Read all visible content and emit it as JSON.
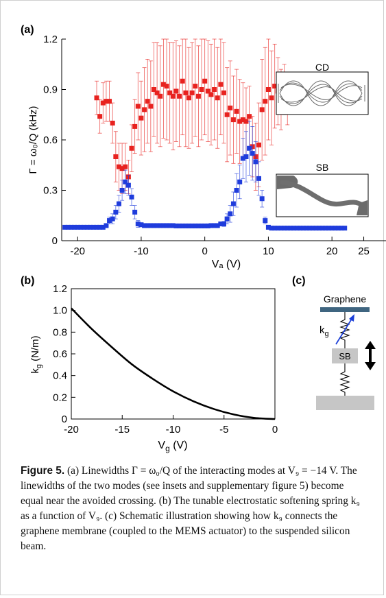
{
  "panel_a": {
    "label": "(a)",
    "xlabel": "Vₐ (V)",
    "ylabel": "Γ = ω₀/Q (kHz)",
    "insets": [
      {
        "label": "CD"
      },
      {
        "label": "SB"
      }
    ]
  },
  "panel_b": {
    "label": "(b)",
    "xlabel": "V",
    "xlabel_sub": "g",
    "xlabel_unit": " (V)",
    "ylabel": "k",
    "ylabel_sub": "g",
    "ylabel_unit": " (N/m)"
  },
  "panel_c": {
    "label": "(c)",
    "graphene_label": "Graphene",
    "spring_label": "k",
    "spring_label_sub": "g",
    "beam_label": "SB"
  },
  "caption": {
    "prefix": "Figure 5.",
    "text": " (a) Linewidths Γ = ω₀/Q of the interacting modes at V₉ = −14 V. The linewidths of the two modes (see insets and supplementary figure 5) become equal near the avoided crossing. (b) The tunable electrostatic softening spring k₉ as a function of V₉. (c) Schematic illustration showing how k₉ connects the graphene membrane (coupled to the MEMS actuator) to the suspended silicon beam."
  },
  "chart_data": [
    {
      "type": "scatter",
      "id": "a",
      "xlabel": "Vₐ (V)",
      "ylabel": "Γ = ω₀/Q (kHz)",
      "xlim": [
        -22.5,
        28.5
      ],
      "ylim": [
        0,
        1.2
      ],
      "xticks": [
        -20,
        -10,
        0,
        10,
        20,
        25
      ],
      "yticks": [
        0,
        0.3,
        0.6,
        0.9,
        1.2
      ],
      "ytick_labels": [
        "0",
        "0.3",
        "0.6",
        "0.9",
        "1.2"
      ],
      "series": [
        {
          "color": "#e8221f",
          "points": [
            [
              -17,
              0.85,
              0.1
            ],
            [
              -16.5,
              0.74,
              0.1
            ],
            [
              -16,
              0.82,
              0.12
            ],
            [
              -15.5,
              0.83,
              0.12
            ],
            [
              -15,
              0.83,
              0.12
            ],
            [
              -14.5,
              0.7,
              0.12
            ],
            [
              -14,
              0.5,
              0.15
            ],
            [
              -13.5,
              0.44,
              0.14
            ],
            [
              -13,
              0.43,
              0.15
            ],
            [
              -12.5,
              0.44,
              0.14
            ],
            [
              -12,
              0.38,
              0.1
            ],
            [
              -11.5,
              0.55,
              0.14
            ],
            [
              -11,
              0.68,
              0.16
            ],
            [
              -10.5,
              0.8,
              0.2
            ],
            [
              -10,
              0.73,
              0.22
            ],
            [
              -9.5,
              0.78,
              0.25
            ],
            [
              -9,
              0.83,
              0.25
            ],
            [
              -8.5,
              0.8,
              0.27
            ],
            [
              -8,
              0.9,
              0.28
            ],
            [
              -7.5,
              0.88,
              0.3
            ],
            [
              -7,
              0.86,
              0.3
            ],
            [
              -6.5,
              0.93,
              0.32
            ],
            [
              -6,
              0.92,
              0.32
            ],
            [
              -5.5,
              0.88,
              0.3
            ],
            [
              -5,
              0.86,
              0.32
            ],
            [
              -4.5,
              0.89,
              0.3
            ],
            [
              -4,
              0.86,
              0.3
            ],
            [
              -3.5,
              0.95,
              0.32
            ],
            [
              -3,
              0.88,
              0.32
            ],
            [
              -2.5,
              0.85,
              0.3
            ],
            [
              -2,
              0.88,
              0.3
            ],
            [
              -1.5,
              0.92,
              0.3
            ],
            [
              -1,
              0.86,
              0.3
            ],
            [
              -0.5,
              0.9,
              0.3
            ],
            [
              0,
              0.95,
              0.32
            ],
            [
              0.5,
              0.89,
              0.3
            ],
            [
              1,
              0.87,
              0.3
            ],
            [
              1.5,
              0.9,
              0.3
            ],
            [
              2,
              0.85,
              0.3
            ],
            [
              2.5,
              0.93,
              0.3
            ],
            [
              3,
              0.88,
              0.3
            ],
            [
              3.5,
              0.75,
              0.28
            ],
            [
              4,
              0.79,
              0.28
            ],
            [
              4.5,
              0.72,
              0.26
            ],
            [
              5,
              0.77,
              0.25
            ],
            [
              5.5,
              0.71,
              0.25
            ],
            [
              6,
              0.72,
              0.22
            ],
            [
              6.5,
              0.71,
              0.2
            ],
            [
              7,
              0.74,
              0.18
            ],
            [
              7.5,
              0.56,
              0.18
            ],
            [
              8,
              0.5,
              0.2
            ],
            [
              8.5,
              0.57,
              0.25
            ],
            [
              9,
              0.78,
              0.3
            ],
            [
              9.5,
              0.83,
              0.32
            ],
            [
              10,
              0.9,
              0.3
            ],
            [
              10.5,
              0.85,
              0.28
            ],
            [
              11,
              0.92,
              0.25
            ],
            [
              11.5,
              0.89,
              0.2
            ],
            [
              12,
              0.84,
              0.18
            ],
            [
              12.5,
              0.9,
              0.15
            ],
            [
              13,
              0.84,
              0.15
            ]
          ]
        },
        {
          "color": "#1f3cdc",
          "points": [
            [
              -22,
              0.08,
              0.005
            ],
            [
              -21.5,
              0.08,
              0.005
            ],
            [
              -21,
              0.08,
              0.005
            ],
            [
              -20.5,
              0.08,
              0.005
            ],
            [
              -20,
              0.08,
              0.005
            ],
            [
              -19.5,
              0.08,
              0.005
            ],
            [
              -19,
              0.08,
              0.005
            ],
            [
              -18.5,
              0.08,
              0.005
            ],
            [
              -18,
              0.08,
              0.005
            ],
            [
              -17.5,
              0.08,
              0.005
            ],
            [
              -17,
              0.08,
              0.005
            ],
            [
              -16.5,
              0.08,
              0.005
            ],
            [
              -16,
              0.08,
              0.006
            ],
            [
              -15.5,
              0.09,
              0.01
            ],
            [
              -15,
              0.12,
              0.02
            ],
            [
              -14.5,
              0.13,
              0.03
            ],
            [
              -14,
              0.17,
              0.04
            ],
            [
              -13.5,
              0.22,
              0.05
            ],
            [
              -13,
              0.3,
              0.06
            ],
            [
              -12.5,
              0.35,
              0.07
            ],
            [
              -12,
              0.33,
              0.06
            ],
            [
              -11.5,
              0.26,
              0.05
            ],
            [
              -11,
              0.17,
              0.04
            ],
            [
              -10.5,
              0.1,
              0.02
            ],
            [
              -10,
              0.095,
              0.01
            ],
            [
              -9.5,
              0.09,
              0.005
            ],
            [
              -9,
              0.09,
              0.005
            ],
            [
              -8.5,
              0.09,
              0.005
            ],
            [
              -8,
              0.09,
              0.005
            ],
            [
              -7.5,
              0.09,
              0.005
            ],
            [
              -7,
              0.09,
              0.005
            ],
            [
              -6.5,
              0.09,
              0.005
            ],
            [
              -6,
              0.09,
              0.005
            ],
            [
              -5.5,
              0.09,
              0.005
            ],
            [
              -5,
              0.09,
              0.005
            ],
            [
              -4.5,
              0.088,
              0.005
            ],
            [
              -4,
              0.088,
              0.005
            ],
            [
              -3.5,
              0.088,
              0.005
            ],
            [
              -3,
              0.088,
              0.005
            ],
            [
              -2.5,
              0.088,
              0.005
            ],
            [
              -2,
              0.088,
              0.005
            ],
            [
              -1.5,
              0.088,
              0.005
            ],
            [
              -1,
              0.088,
              0.005
            ],
            [
              -0.5,
              0.088,
              0.005
            ],
            [
              0,
              0.088,
              0.005
            ],
            [
              0.5,
              0.088,
              0.005
            ],
            [
              1,
              0.09,
              0.005
            ],
            [
              1.5,
              0.09,
              0.005
            ],
            [
              2,
              0.09,
              0.006
            ],
            [
              2.5,
              0.1,
              0.01
            ],
            [
              3,
              0.1,
              0.015
            ],
            [
              3.5,
              0.13,
              0.03
            ],
            [
              4,
              0.16,
              0.05
            ],
            [
              4.5,
              0.22,
              0.07
            ],
            [
              5,
              0.3,
              0.1
            ],
            [
              5.5,
              0.35,
              0.1
            ],
            [
              6,
              0.49,
              0.12
            ],
            [
              6.5,
              0.5,
              0.15
            ],
            [
              7,
              0.55,
              0.16
            ],
            [
              7.5,
              0.52,
              0.16
            ],
            [
              8,
              0.47,
              0.12
            ],
            [
              8.5,
              0.37,
              0.1
            ],
            [
              9,
              0.25,
              0.05
            ],
            [
              9.5,
              0.12,
              0.02
            ],
            [
              10,
              0.08,
              0.005
            ],
            [
              10.5,
              0.075,
              0.005
            ],
            [
              11,
              0.075,
              0.005
            ],
            [
              11.5,
              0.075,
              0.005
            ],
            [
              12,
              0.075,
              0.005
            ],
            [
              12.5,
              0.075,
              0.005
            ],
            [
              13,
              0.075,
              0.005
            ],
            [
              13.5,
              0.075,
              0.005
            ],
            [
              14,
              0.075,
              0.005
            ],
            [
              14.5,
              0.075,
              0.005
            ],
            [
              15,
              0.075,
              0.005
            ],
            [
              15.5,
              0.075,
              0.005
            ],
            [
              16,
              0.075,
              0.005
            ],
            [
              16.5,
              0.075,
              0.005
            ],
            [
              17,
              0.075,
              0.005
            ],
            [
              17.5,
              0.075,
              0.005
            ],
            [
              18,
              0.075,
              0.005
            ],
            [
              18.5,
              0.075,
              0.005
            ],
            [
              19,
              0.075,
              0.005
            ],
            [
              19.5,
              0.075,
              0.005
            ],
            [
              20,
              0.075,
              0.005
            ],
            [
              20.5,
              0.075,
              0.005
            ],
            [
              21,
              0.075,
              0.005
            ],
            [
              21.5,
              0.075,
              0.005
            ],
            [
              22,
              0.075,
              0.005
            ]
          ]
        }
      ]
    },
    {
      "type": "line",
      "id": "b",
      "xlim": [
        -20,
        0
      ],
      "ylim": [
        0,
        1.2
      ],
      "xticks": [
        -20,
        -15,
        -10,
        -5,
        0
      ],
      "yticks": [
        0,
        0.2,
        0.4,
        0.6,
        0.8,
        1.0,
        1.2
      ],
      "ytick_labels": [
        "0",
        "0.2",
        "0.4",
        "0.6",
        "0.8",
        "1.0",
        "1.2"
      ],
      "color": "#000000",
      "x": [
        -20,
        -18,
        -16,
        -14,
        -12,
        -10,
        -8,
        -6,
        -4,
        -2,
        0
      ],
      "y": [
        1.02,
        0.83,
        0.66,
        0.5,
        0.37,
        0.255,
        0.163,
        0.092,
        0.041,
        0.01,
        0
      ]
    }
  ]
}
